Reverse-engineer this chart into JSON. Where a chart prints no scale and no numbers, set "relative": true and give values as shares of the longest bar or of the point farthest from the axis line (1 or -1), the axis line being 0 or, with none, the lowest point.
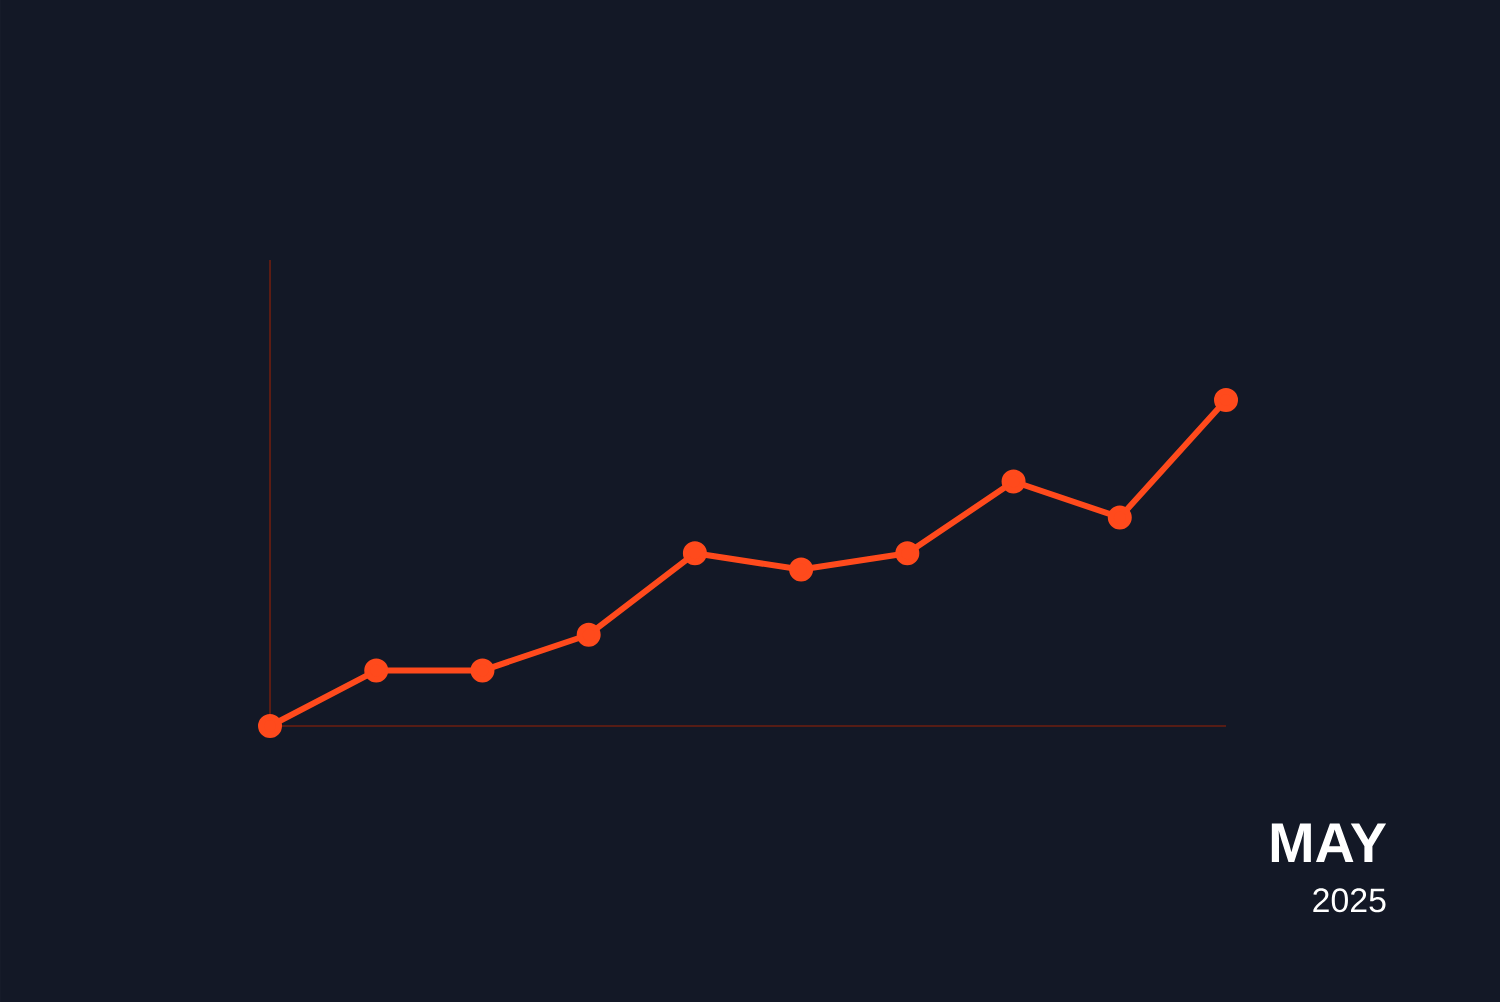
{
  "chart_data": {
    "type": "line",
    "title": "MAY",
    "subtitle": "2025",
    "relative": true,
    "categories": [
      null,
      null,
      null,
      null,
      null,
      null,
      null,
      null,
      null,
      null
    ],
    "series": [
      {
        "color": "#ff4a1c",
        "values": [
          0,
          0.17,
          0.17,
          0.28,
          0.53,
          0.48,
          0.53,
          0.75,
          0.64,
          1
        ]
      }
    ],
    "marker": "circle",
    "line_style": "solid",
    "grid": false
  }
}
